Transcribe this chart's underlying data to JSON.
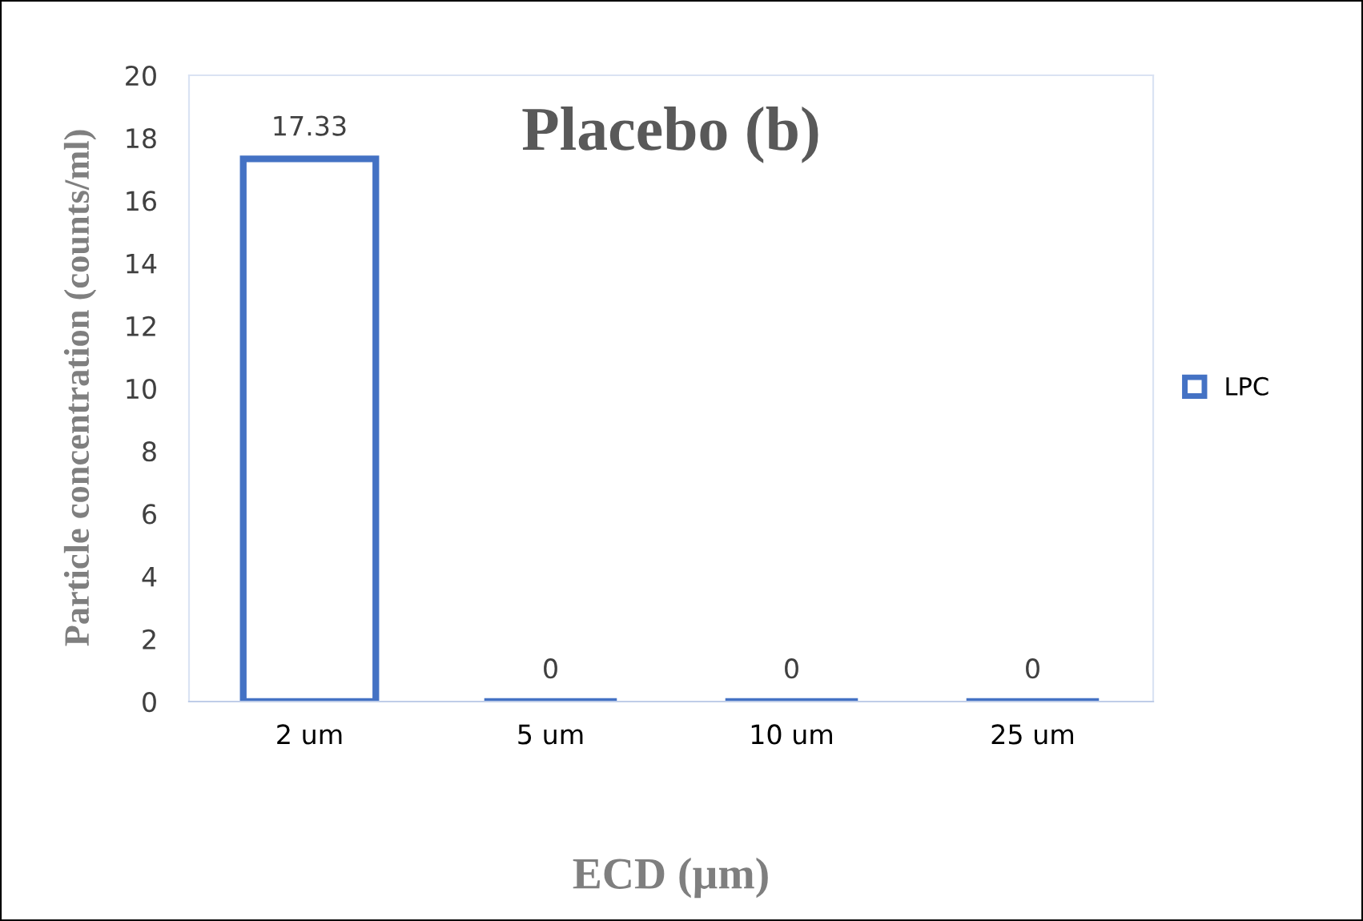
{
  "chart_data": {
    "type": "bar",
    "title": "Placebo (b)",
    "xlabel": "ECD (µm)",
    "ylabel": "Particle concentration (counts/ml)",
    "categories": [
      "2 um",
      "5 um",
      "10 um",
      "25 um"
    ],
    "series": [
      {
        "name": "LPC",
        "color": "#4472c4",
        "values": [
          17.33,
          0,
          0,
          0
        ]
      }
    ],
    "ylim": [
      0,
      20
    ],
    "yticks": [
      0,
      2,
      4,
      6,
      8,
      10,
      12,
      14,
      16,
      18,
      20
    ],
    "data_labels": true,
    "legend": "right",
    "grid": false
  }
}
